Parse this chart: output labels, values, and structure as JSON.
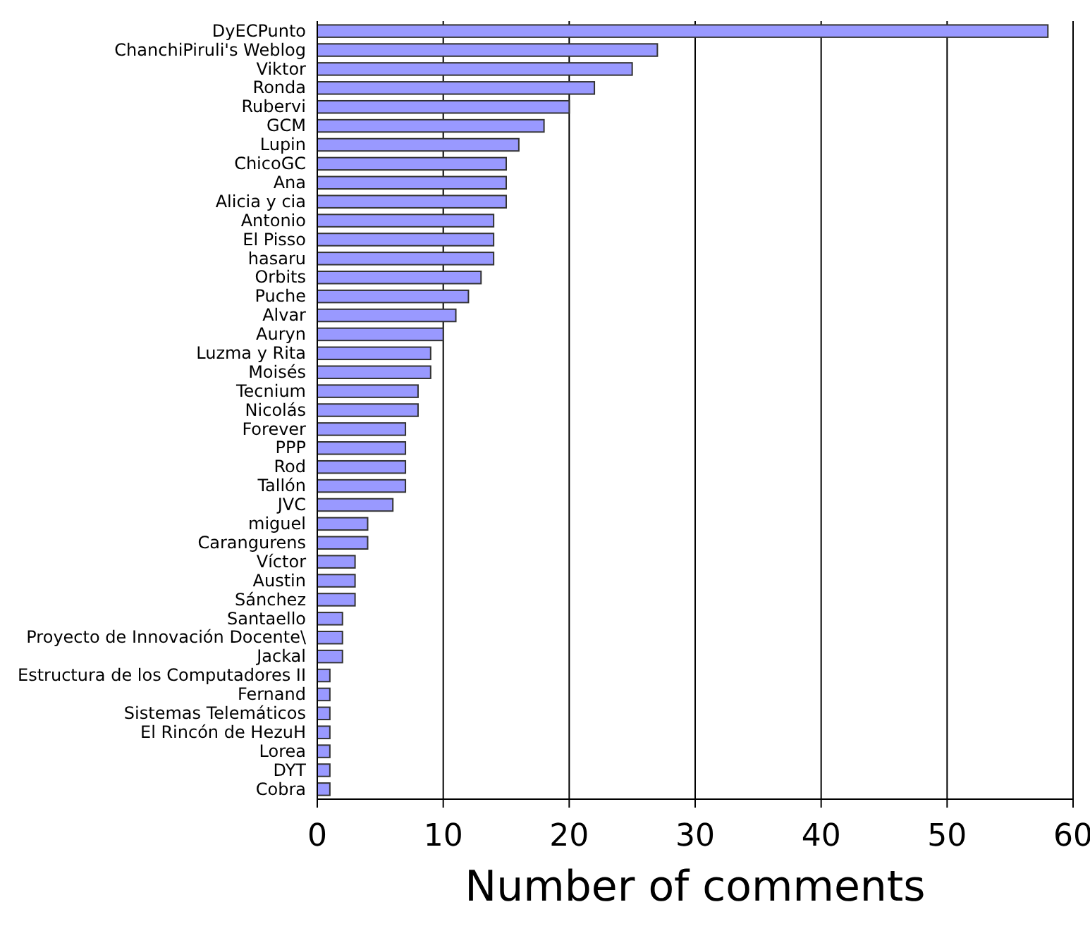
{
  "chart_data": {
    "type": "bar",
    "orientation": "horizontal",
    "xlabel": "Number of comments",
    "categories": [
      "DyECPunto",
      "ChanchiPiruli's Weblog",
      "Viktor",
      "Ronda",
      "Rubervi",
      "GCM",
      "Lupin",
      "ChicoGC",
      "Ana",
      "Alicia y cia",
      "Antonio",
      "El Pisso",
      "hasaru",
      "Orbits",
      "Puche",
      "Alvar",
      "Auryn",
      "Luzma y Rita",
      "Moisés",
      "Tecnium",
      "Nicolás",
      "Forever",
      "PPP",
      "Rod",
      "Tallón",
      "JVC",
      "miguel",
      "Carangurens",
      "Víctor",
      "Austin",
      "Sánchez",
      "Santaello",
      "Proyecto de Innovación Docente\\",
      "Jackal",
      "Estructura de los Computadores II",
      "Fernand",
      "Sistemas Telemáticos",
      "El Rincón de HezuH",
      "Lorea",
      "DYT",
      "Cobra"
    ],
    "values": [
      58,
      27,
      25,
      22,
      20,
      18,
      16,
      15,
      15,
      15,
      14,
      14,
      14,
      13,
      12,
      11,
      10,
      9,
      9,
      8,
      8,
      7,
      7,
      7,
      7,
      6,
      4,
      4,
      3,
      3,
      3,
      2,
      2,
      2,
      1,
      1,
      1,
      1,
      1,
      1,
      1
    ],
    "color": "#9999ff",
    "xlim": [
      0,
      60
    ],
    "xticks": [
      0,
      10,
      20,
      30,
      40,
      50,
      60
    ],
    "grid": "x"
  }
}
